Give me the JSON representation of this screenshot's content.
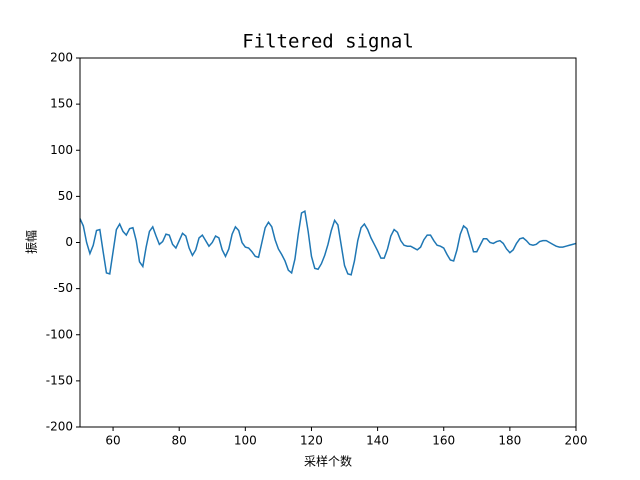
{
  "chart_data": {
    "type": "line",
    "title": "Filtered signal",
    "x_label": "采样个数",
    "y_label": "振幅",
    "x": [
      50,
      51,
      52,
      53,
      54,
      55,
      56,
      57,
      58,
      59,
      60,
      61,
      62,
      63,
      64,
      65,
      66,
      67,
      68,
      69,
      70,
      71,
      72,
      73,
      74,
      75,
      76,
      77,
      78,
      79,
      80,
      81,
      82,
      83,
      84,
      85,
      86,
      87,
      88,
      89,
      90,
      91,
      92,
      93,
      94,
      95,
      96,
      97,
      98,
      99,
      100,
      101,
      102,
      103,
      104,
      105,
      106,
      107,
      108,
      109,
      110,
      111,
      112,
      113,
      114,
      115,
      116,
      117,
      118,
      119,
      120,
      121,
      122,
      123,
      124,
      125,
      126,
      127,
      128,
      129,
      130,
      131,
      132,
      133,
      134,
      135,
      136,
      137,
      138,
      139,
      140,
      141,
      142,
      143,
      144,
      145,
      146,
      147,
      148,
      149,
      150,
      151,
      152,
      153,
      154,
      155,
      156,
      157,
      158,
      159,
      160,
      161,
      162,
      163,
      164,
      165,
      166,
      167,
      168,
      169,
      170,
      171,
      172,
      173,
      174,
      175,
      176,
      177,
      178,
      179,
      180,
      181,
      182,
      183,
      184,
      185,
      186,
      187,
      188,
      189,
      190,
      191,
      192,
      193,
      194,
      195,
      196,
      197,
      198,
      199,
      200
    ],
    "series": [
      {
        "color": "#1f77b4",
        "values": [
          26,
          18,
          0,
          -12,
          -3,
          13,
          14,
          -10,
          -33,
          -34,
          -10,
          14,
          20,
          12,
          8,
          15,
          16,
          2,
          -21,
          -26,
          -5,
          12,
          17,
          7,
          -2,
          1,
          9,
          8,
          -2,
          -6,
          2,
          10,
          7,
          -6,
          -14,
          -8,
          5,
          8,
          2,
          -4,
          0,
          7,
          5,
          -8,
          -15,
          -7,
          9,
          17,
          13,
          0,
          -5,
          -6,
          -10,
          -15,
          -16,
          0,
          16,
          22,
          17,
          3,
          -7,
          -13,
          -20,
          -30,
          -33,
          -18,
          9,
          32,
          34,
          12,
          -15,
          -28,
          -29,
          -23,
          -14,
          -2,
          13,
          24,
          19,
          -3,
          -25,
          -34,
          -35,
          -20,
          2,
          16,
          20,
          14,
          5,
          -2,
          -9,
          -17,
          -17,
          -7,
          7,
          14,
          11,
          2,
          -3,
          -4,
          -4,
          -6,
          -8,
          -5,
          3,
          8,
          8,
          2,
          -3,
          -4,
          -6,
          -13,
          -19,
          -20,
          -8,
          9,
          18,
          15,
          3,
          -10,
          -10,
          -3,
          4,
          4,
          0,
          -1,
          1,
          2,
          -1,
          -7,
          -11,
          -8,
          -1,
          4,
          5,
          2,
          -2,
          -3,
          -2,
          1,
          2,
          2,
          0,
          -2,
          -4,
          -5,
          -5,
          -4,
          -3,
          -2,
          -1
        ]
      }
    ],
    "xlim": [
      50,
      200
    ],
    "xticks": [
      60,
      80,
      100,
      120,
      140,
      160,
      180,
      200
    ],
    "ylim": [
      -200,
      200
    ],
    "yticks": [
      -200,
      -150,
      -100,
      -50,
      0,
      50,
      100,
      150,
      200
    ]
  }
}
